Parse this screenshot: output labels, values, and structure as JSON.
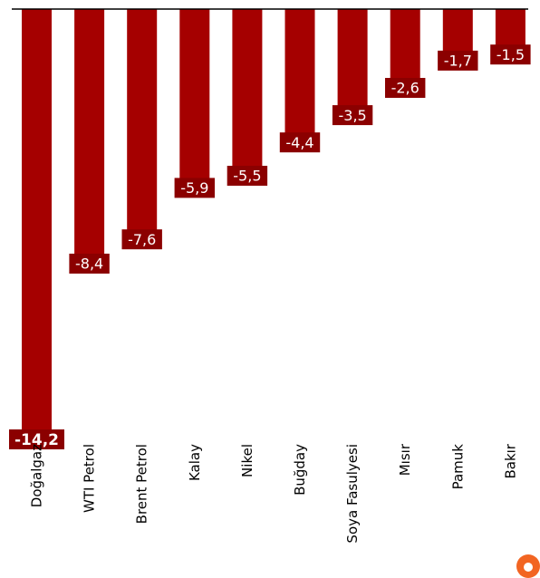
{
  "chart_data": {
    "type": "bar",
    "categories": [
      "Doğalgaz",
      "WTI Petrol",
      "Brent Petrol",
      "Kalay",
      "Nikel",
      "Buğday",
      "Soya Fasulyesi",
      "Mısır",
      "Pamuk",
      "Bakır"
    ],
    "values": [
      -14.2,
      -8.4,
      -7.6,
      -5.9,
      -5.5,
      -4.4,
      -3.5,
      -2.6,
      -1.7,
      -1.5
    ],
    "value_labels": [
      "-14,2",
      "-8,4",
      "-7,6",
      "-5,9",
      "-5,5",
      "-4,4",
      "-3,5",
      "-2,6",
      "-1,7",
      "-1,5"
    ],
    "title": "",
    "xlabel": "",
    "ylabel": "",
    "ylim": [
      -14.2,
      0
    ],
    "grid": false,
    "legend": "none",
    "colors": {
      "bar": "#a50000",
      "label_bg": "#8b0000",
      "label_text": "#ffffff",
      "axis": "#000000"
    }
  },
  "logo": {
    "icon": "circle-logo-icon",
    "color": "#f26522"
  }
}
